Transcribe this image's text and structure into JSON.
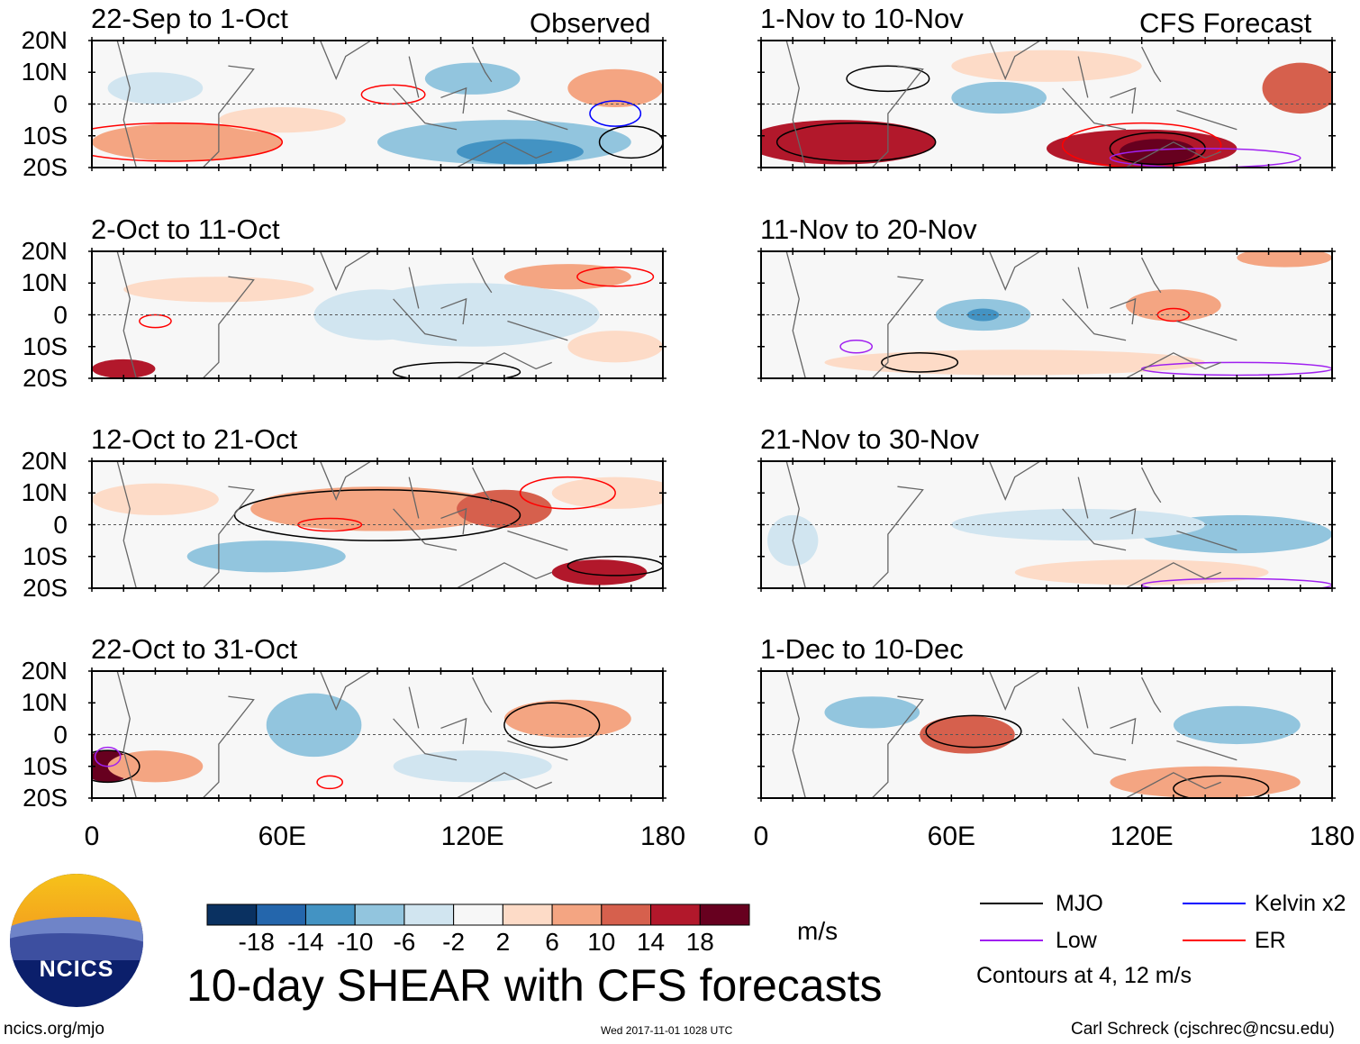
{
  "chart_data": {
    "type": "heatmap",
    "title": "10-day SHEAR with CFS forecasts",
    "variable": "SHEAR",
    "units": "m/s",
    "x_ticks": [
      "0",
      "60E",
      "120E",
      "180"
    ],
    "y_ticks": [
      "20N",
      "10N",
      "0",
      "10S",
      "20S"
    ],
    "xlim": [
      0,
      180
    ],
    "ylim": [
      -20,
      20
    ],
    "column_headers": {
      "observed": "Observed",
      "forecast": "CFS Forecast"
    },
    "panels": [
      {
        "title": "22-Sep to 1-Oct",
        "source": "observed"
      },
      {
        "title": "2-Oct to 11-Oct",
        "source": "observed"
      },
      {
        "title": "12-Oct to 21-Oct",
        "source": "observed"
      },
      {
        "title": "22-Oct to 31-Oct",
        "source": "observed"
      },
      {
        "title": "1-Nov to 10-Nov",
        "source": "forecast"
      },
      {
        "title": "11-Nov to 20-Nov",
        "source": "forecast"
      },
      {
        "title": "21-Nov to 30-Nov",
        "source": "forecast"
      },
      {
        "title": "1-Dec to 10-Dec",
        "source": "forecast"
      }
    ],
    "colorbar": {
      "levels": [
        "-18",
        "-14",
        "-10",
        "-6",
        "-2",
        "2",
        "6",
        "10",
        "14",
        "18"
      ],
      "colors": [
        "#0a3161",
        "#2466ac",
        "#4393c3",
        "#92c5de",
        "#d1e5f0",
        "#f7f7f7",
        "#fddbc7",
        "#f4a582",
        "#d6604d",
        "#b2182b",
        "#67001f"
      ]
    },
    "legend": [
      {
        "label": "MJO",
        "color": "#000000"
      },
      {
        "label": "Kelvin x2",
        "color": "#0000ff"
      },
      {
        "label": "Low",
        "color": "#a020f0"
      },
      {
        "label": "ER",
        "color": "#ff0000"
      }
    ],
    "contour_note": "Contours at 4, 12 m/s"
  },
  "logo": {
    "text": "NCICS"
  },
  "footer": {
    "url": "ncics.org/mjo",
    "timestamp": "Wed 2017-11-01 1028 UTC",
    "author": "Carl Schreck (cjschrec@ncsu.edu)"
  }
}
